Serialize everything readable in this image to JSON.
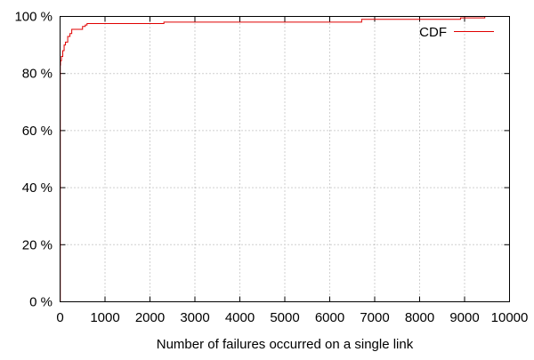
{
  "chart_data": {
    "type": "line",
    "title": "",
    "xlabel": "Number of failures occurred on a single link",
    "ylabel": "",
    "xlim": [
      0,
      10000
    ],
    "ylim": [
      0,
      100
    ],
    "x_ticks": [
      0,
      1000,
      2000,
      3000,
      4000,
      5000,
      6000,
      7000,
      8000,
      9000,
      10000
    ],
    "x_tick_labels": [
      "0",
      "1000",
      "2000",
      "3000",
      "4000",
      "5000",
      "6000",
      "7000",
      "8000",
      "9000",
      "10000"
    ],
    "y_ticks": [
      0,
      20,
      40,
      60,
      80,
      100
    ],
    "y_tick_labels": [
      "0 %",
      "20 %",
      "40 %",
      "60 %",
      "80 %",
      "100 %"
    ],
    "grid": true,
    "legend_position": "top-right",
    "series": [
      {
        "name": "CDF",
        "color": "#e00000",
        "step": true,
        "x": [
          0,
          5,
          10,
          30,
          60,
          90,
          120,
          170,
          220,
          260,
          300,
          400,
          500,
          560,
          600,
          2300,
          2310,
          6700,
          6710,
          8900,
          8910,
          9450
        ],
        "y": [
          0,
          83,
          84.5,
          86,
          88,
          90,
          91,
          93,
          94,
          95.5,
          95.5,
          95.5,
          96.5,
          97,
          97.5,
          97.5,
          98,
          98,
          99,
          99,
          99.5,
          100
        ]
      }
    ]
  }
}
